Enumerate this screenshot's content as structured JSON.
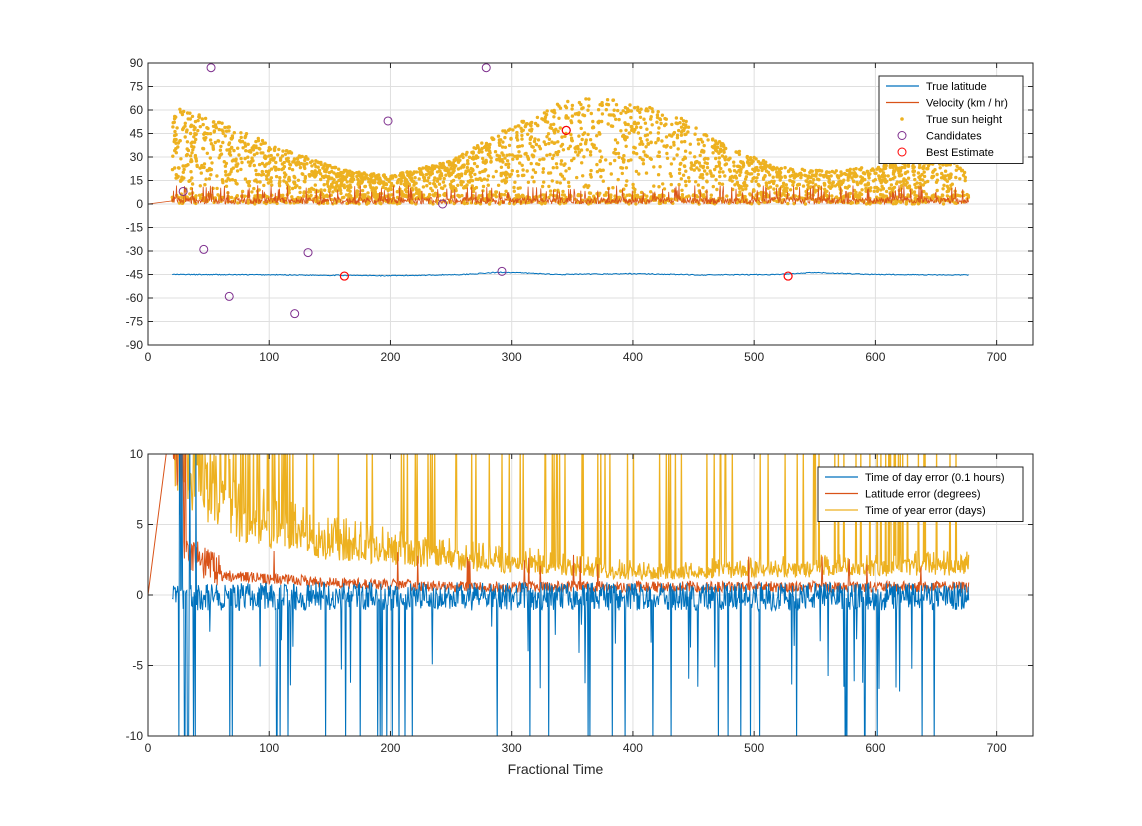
{
  "chart_data": [
    {
      "type": "scatter",
      "xlim": [
        0,
        730
      ],
      "ylim": [
        -90,
        90
      ],
      "x_ticks": [
        0,
        100,
        200,
        300,
        400,
        500,
        600,
        700
      ],
      "y_ticks": [
        90,
        75,
        60,
        45,
        30,
        15,
        0,
        -15,
        -30,
        -45,
        -60,
        -75,
        -90
      ],
      "grid": true,
      "legend_position": "top-right",
      "colors": {
        "true_latitude": "#0072BD",
        "velocity": "#D95319",
        "true_sun_height": "#EDB120",
        "candidates": "#7E2F8E",
        "best_estimate": "#FF0000"
      },
      "legend": [
        "True latitude",
        "Velocity (km / hr)",
        "True sun height",
        "Candidates",
        "Best Estimate"
      ],
      "series": [
        {
          "name": "True latitude",
          "style": "line",
          "x": [
            20,
            100,
            160,
            200,
            260,
            292,
            340,
            400,
            460,
            520,
            550,
            600,
            650,
            677
          ],
          "y": [
            -45,
            -45.2,
            -45.5,
            -45.8,
            -45,
            -43.5,
            -45,
            -44.5,
            -45.3,
            -45,
            -43.8,
            -45,
            -45.2,
            -45.3
          ]
        },
        {
          "name": "Velocity (km / hr)",
          "style": "noisy-line",
          "ramp": {
            "x": [
              0,
              20
            ],
            "y": [
              0,
              2
            ]
          },
          "x_range": [
            20,
            677
          ],
          "baseline": 0,
          "typical_max": 7,
          "spike_max": 12
        },
        {
          "name": "True sun height",
          "style": "scatter-envelope",
          "x_range": [
            20,
            677
          ],
          "envelope_x": [
            20,
            60,
            110,
            160,
            200,
            250,
            300,
            340,
            370,
            400,
            440,
            480,
            520,
            560,
            600,
            640,
            677
          ],
          "envelope_y": [
            63,
            52,
            36,
            22,
            18,
            28,
            50,
            65,
            68,
            65,
            55,
            36,
            24,
            21,
            24,
            30,
            38
          ],
          "min": 0
        },
        {
          "name": "Candidates",
          "style": "marker-circle",
          "x": [
            29,
            52,
            46,
            67,
            121,
            132,
            198,
            243,
            279,
            292,
            345
          ],
          "y": [
            8,
            87,
            -29,
            -59,
            -70,
            -31,
            53,
            0,
            87,
            -43,
            47
          ]
        },
        {
          "name": "Best Estimate",
          "style": "marker-circle",
          "x": [
            162,
            345,
            528
          ],
          "y": [
            -46,
            47,
            -46
          ]
        }
      ]
    },
    {
      "type": "line",
      "xlim": [
        0,
        730
      ],
      "ylim": [
        -10,
        10
      ],
      "x_ticks": [
        0,
        100,
        200,
        300,
        400,
        500,
        600,
        700
      ],
      "y_ticks": [
        10,
        5,
        0,
        -5,
        -10
      ],
      "xlabel": "Fractional Time",
      "grid": true,
      "legend_position": "top-right",
      "legend": [
        "Time of day error (0.1 hours)",
        "Latitude error (degrees)",
        "Time of year error (days)"
      ],
      "series": [
        {
          "name": "Time of day error (0.1 hours)",
          "color": "#0072BD",
          "x_range": [
            20,
            677
          ],
          "baseline": 0,
          "noise_amplitude": 1.0,
          "negative_spike_to": -10
        },
        {
          "name": "Latitude error (degrees)",
          "color": "#D95319",
          "x_range": [
            0,
            677
          ],
          "start_ramp": {
            "x": [
              0,
              15
            ],
            "y": [
              0,
              10
            ]
          },
          "decay_level": [
            [
              20,
              10
            ],
            [
              30,
              3
            ],
            [
              60,
              1.3
            ],
            [
              150,
              0.8
            ],
            [
              250,
              0.5
            ],
            [
              677,
              0.5
            ]
          ],
          "noise_amplitude": 0.8
        },
        {
          "name": "Time of year error (days)",
          "color": "#EDB120",
          "x_range": [
            20,
            677
          ],
          "level": [
            [
              20,
              10
            ],
            [
              40,
              8
            ],
            [
              80,
              5
            ],
            [
              150,
              3.5
            ],
            [
              250,
              2.5
            ],
            [
              400,
              1.5
            ],
            [
              677,
              2
            ]
          ],
          "spike_to": 10
        }
      ]
    }
  ]
}
